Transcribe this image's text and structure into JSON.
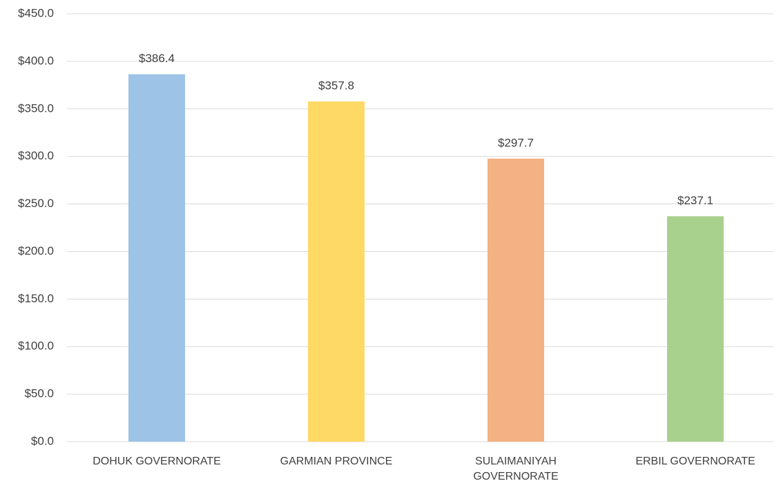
{
  "chart_data": {
    "type": "bar",
    "categories": [
      "DOHUK GOVERNORATE",
      "GARMIAN PROVINCE",
      "SULAIMANIYAH GOVERNORATE",
      "ERBIL GOVERNORATE"
    ],
    "values": [
      386.4,
      357.8,
      297.7,
      237.1
    ],
    "value_labels": [
      "$386.4",
      "$357.8",
      "$297.7",
      "$237.1"
    ],
    "colors": [
      "#9dc3e6",
      "#ffd966",
      "#f4b183",
      "#a9d18e"
    ],
    "ylim": [
      0,
      450
    ],
    "yticks": [
      {
        "value": 0,
        "label": "$0.0"
      },
      {
        "value": 50,
        "label": "$50.0"
      },
      {
        "value": 100,
        "label": "$100.0"
      },
      {
        "value": 150,
        "label": "$150.0"
      },
      {
        "value": 200,
        "label": "$200.0"
      },
      {
        "value": 250,
        "label": "$250.0"
      },
      {
        "value": 300,
        "label": "$300.0"
      },
      {
        "value": 350,
        "label": "$350.0"
      },
      {
        "value": 400,
        "label": "$400.0"
      },
      {
        "value": 450,
        "label": "$450.0"
      }
    ],
    "grid": true
  }
}
